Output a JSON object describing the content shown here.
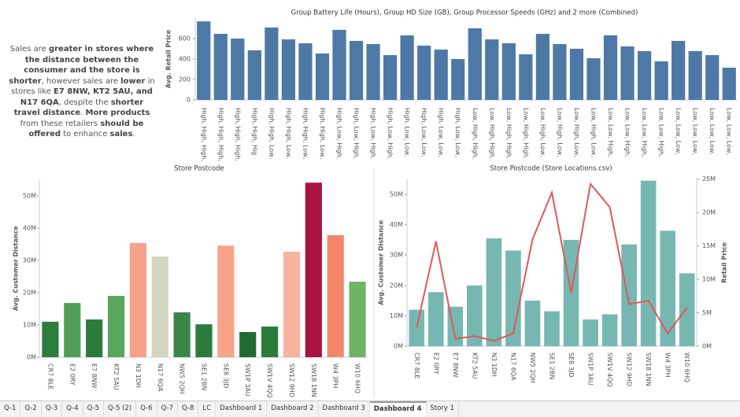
{
  "annotation": [
    {
      "text": "Sales are ",
      "bold": false
    },
    {
      "text": "greater in stores where the distance between the consumer and the store is shorter",
      "bold": true
    },
    {
      "text": ", however sales are ",
      "bold": false
    },
    {
      "text": "lower",
      "bold": true
    },
    {
      "text": " in stores like ",
      "bold": false
    },
    {
      "text": "E7 8NW, KT2 5AU, and N17 6QA",
      "bold": true
    },
    {
      "text": ", despite the ",
      "bold": false
    },
    {
      "text": "shorter travel distance",
      "bold": true
    },
    {
      "text": ". ",
      "bold": false
    },
    {
      "text": "More products",
      "bold": true
    },
    {
      "text": " from these retailers ",
      "bold": false
    },
    {
      "text": "should be offered",
      "bold": true
    },
    {
      "text": " to enhance ",
      "bold": false
    },
    {
      "text": "sales",
      "bold": true
    },
    {
      "text": ".",
      "bold": false
    }
  ],
  "chart_data": [
    {
      "type": "bar",
      "title": "Group Battery Life (Hours), Group HD Size (GB), Group Processor Speeds (GHz) and 2 more (Combined)",
      "y_label": "Avg. Retail Price",
      "categories": [
        "High, High, High,",
        "High, High, High,",
        "High, High, High,",
        "High, High, Hig",
        "High, High, Low,",
        "High, High, Low,",
        "High, High, Low,",
        "High, High, Low,",
        "High, Low, High,",
        "High, Low, High,",
        "High, Low, High,",
        "High, Low, High,",
        "High, Low, Low,",
        "High, Low, Low,",
        "High, Low, Low,",
        "High, Low, Low,",
        "Low, High, High,",
        "Low, High, High,",
        "Low, High, High,",
        "Low, High, High,",
        "Low, High, Low,",
        "Low, High, Low,",
        "Low, High, Low,",
        "Low, High, Low,",
        "Low, Low, High,",
        "Low, Low, High,",
        "Low, Low, High,",
        "Low, Low, High,",
        "Low, Low, Low,",
        "Low, Low, Low,",
        "Low, Low, Low,",
        "Low, Low, Low,"
      ],
      "values": [
        768,
        646,
        600,
        485,
        708,
        592,
        554,
        454,
        685,
        577,
        546,
        438,
        631,
        531,
        492,
        400,
        700,
        592,
        554,
        446,
        646,
        546,
        500,
        408,
        631,
        523,
        477,
        377,
        577,
        477,
        438,
        315
      ],
      "color": "#4e79a7",
      "ylim": [
        0,
        800
      ],
      "yticks": [
        0,
        200,
        400,
        600
      ]
    },
    {
      "type": "bar",
      "title": "Store Postcode",
      "y_label": "Avg. Customer Distance",
      "categories": [
        "CR7 8LE",
        "E2 0RY",
        "E7 8NW",
        "KT2 5AU",
        "N3 1DH",
        "N17 6QA",
        "NW5 2QH",
        "SE1 2BN",
        "SE8 3JD",
        "SW1P 3AU",
        "SW1V 4QQ",
        "SW12 9HD",
        "SW18 1NN",
        "W4 3PH",
        "W10 6HQ"
      ],
      "values": [
        11000000,
        16800000,
        11700000,
        19000000,
        35400000,
        31200000,
        13900000,
        10200000,
        34600000,
        7800000,
        9500000,
        32700000,
        54100000,
        37800000,
        23400000
      ],
      "colors": [
        "#2d7d3e",
        "#4e9e53",
        "#2b7b3b",
        "#59a55a",
        "#f5a088",
        "#d5d6c1",
        "#398647",
        "#2b7b3b",
        "#f7a387",
        "#1f6b33",
        "#2b7b3b",
        "#f8b2a0",
        "#a8133f",
        "#f4866a",
        "#6db565"
      ],
      "ylim": [
        0,
        55000000
      ],
      "yticks": [
        {
          "value": 0,
          "label": "0M"
        },
        {
          "value": 10000000,
          "label": "10M"
        },
        {
          "value": 20000000,
          "label": "20M"
        },
        {
          "value": 30000000,
          "label": "30M"
        },
        {
          "value": 40000000,
          "label": "40M"
        },
        {
          "value": 50000000,
          "label": "50M"
        }
      ]
    },
    {
      "type": "bar_line",
      "title": "Store Postcode (Store Locations.csv)",
      "y_label": "Avg. Customer Distance",
      "y2_label": "Retail Price",
      "categories": [
        "CR7 8LE",
        "E2 0RY",
        "E7 8NW",
        "KT2 5AU",
        "N3 1DH",
        "N17 6QA",
        "NW5 2QH",
        "SE1 2BN",
        "SE8 3JD",
        "SW1P 3AU",
        "SW1V 4QQ",
        "SW12 9HD",
        "SW18 1NN",
        "W4 3PH",
        "W10 6HQ"
      ],
      "series": [
        {
          "mark": "bar",
          "color": "#76b7b2",
          "values": [
            12000000,
            17800000,
            13000000,
            20000000,
            35500000,
            31500000,
            15000000,
            11500000,
            35000000,
            8800000,
            10500000,
            33500000,
            54500000,
            38000000,
            24000000
          ]
        },
        {
          "mark": "line",
          "axis": "y2",
          "color": "#e15759",
          "values": [
            2800000,
            15700000,
            1100000,
            1500000,
            800000,
            1900000,
            16000000,
            23000000,
            8000000,
            24300000,
            20800000,
            6300000,
            6800000,
            1900000,
            5800000
          ]
        }
      ],
      "ylim": [
        0,
        55000000
      ],
      "yticks": [
        {
          "value": 0,
          "label": "0M"
        },
        {
          "value": 10000000,
          "label": "10M"
        },
        {
          "value": 20000000,
          "label": "20M"
        },
        {
          "value": 30000000,
          "label": "30M"
        },
        {
          "value": 40000000,
          "label": "40M"
        },
        {
          "value": 50000000,
          "label": "50M"
        }
      ],
      "y2lim": [
        0,
        25000000
      ],
      "y2ticks": [
        {
          "value": 0,
          "label": "0M"
        },
        {
          "value": 5000000,
          "label": "5M"
        },
        {
          "value": 10000000,
          "label": "10M"
        },
        {
          "value": 15000000,
          "label": "15M"
        },
        {
          "value": 20000000,
          "label": "20M"
        },
        {
          "value": 25000000,
          "label": "25M"
        }
      ]
    }
  ],
  "tabs": [
    "Q-1",
    "Q-2",
    "Q-3",
    "Q-4",
    "Q-5",
    "Q-5 (2)",
    "Q-6",
    "Q-7",
    "Q-8",
    "LC",
    "Dashboard 1",
    "Dashboard 2",
    "Dashboard 3",
    "Dashboard 4",
    "Story 1"
  ],
  "active_tab": 13
}
